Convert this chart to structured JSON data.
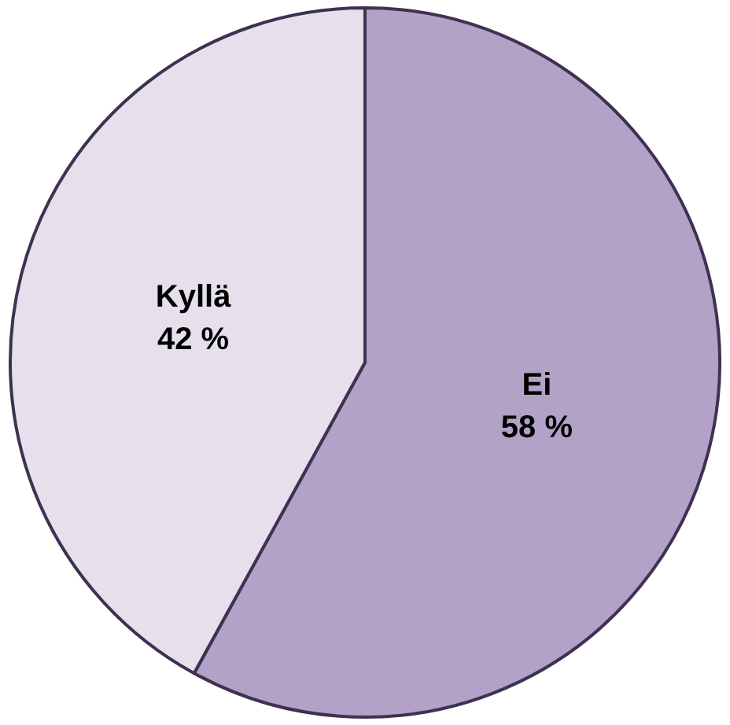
{
  "chart_data": {
    "type": "pie",
    "categories": [
      "Ei",
      "Kyllä"
    ],
    "values": [
      58,
      42
    ],
    "value_labels": [
      "58 %",
      "42 %"
    ],
    "colors": [
      "#b3a2c7",
      "#e6e0ec"
    ],
    "legend": false
  }
}
